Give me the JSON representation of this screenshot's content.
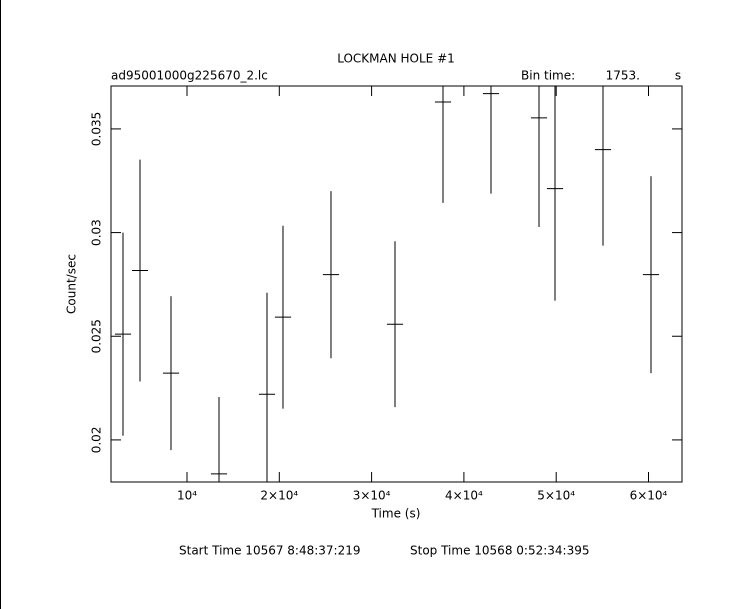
{
  "chart_data": {
    "type": "errorbar",
    "title": "LOCKMAN HOLE #1",
    "file_name": "ad95001000g225670_2.lc",
    "bin_time_label": "Bin time:",
    "bin_time": {
      "value": 1753,
      "label": "1753."
    },
    "bin_time_unit": "s",
    "x_label": "Time (s)",
    "y_label": "Count/sec",
    "start_time": "Start Time 10567  8:48:37:219",
    "stop_time": "Stop Time 10568  0:52:34:395",
    "color": "#000000",
    "x": [
      3066,
      4908,
      8266,
      13467,
      18667,
      20400,
      25600,
      32535,
      37736,
      42936,
      48137,
      49870,
      55071,
      60271
    ],
    "values": [
      0.0251,
      0.02817,
      0.02322,
      0.01836,
      0.0222,
      0.02592,
      0.02797,
      0.02558,
      0.0363,
      0.0367,
      0.03553,
      0.03212,
      0.034,
      0.02797
    ],
    "errors": [
      0.0049,
      0.00535,
      0.00371,
      0.00371,
      0.0049,
      0.00441,
      0.00403,
      0.004,
      0.00487,
      0.00482,
      0.00526,
      0.0054,
      0.00463,
      0.00475
    ],
    "xlim": [
      1766,
      63630
    ],
    "ylim": [
      0.01797,
      0.03707
    ],
    "xticks": [
      {
        "value": 10000,
        "label": "10⁴"
      },
      {
        "value": 20000,
        "label": "2×10⁴"
      },
      {
        "value": 30000,
        "label": "3×10⁴"
      },
      {
        "value": 40000,
        "label": "4×10⁴"
      },
      {
        "value": 50000,
        "label": "5×10⁴"
      },
      {
        "value": 60000,
        "label": "6×10⁴"
      }
    ],
    "yticks": [
      0.02,
      0.025,
      0.03,
      0.035
    ]
  }
}
